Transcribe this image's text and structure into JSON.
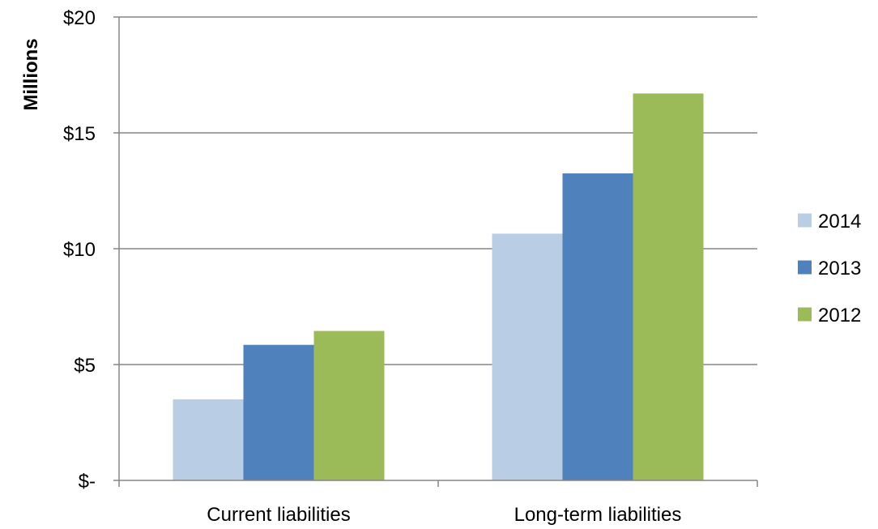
{
  "chart_data": {
    "type": "bar",
    "title": "",
    "xlabel": "",
    "ylabel": "Millions",
    "categories": [
      "Current liabilities",
      "Long-term liabilities"
    ],
    "series": [
      {
        "name": "2014",
        "color": "#b9cde5",
        "values": [
          3.5,
          10.65
        ]
      },
      {
        "name": "2013",
        "color": "#4f81bd",
        "values": [
          5.85,
          13.25
        ]
      },
      {
        "name": "2012",
        "color": "#9bbb59",
        "values": [
          6.45,
          16.7
        ]
      }
    ],
    "ylim": [
      0,
      20
    ],
    "yticks": [
      0,
      5,
      10,
      15,
      20
    ],
    "ytick_labels": [
      "$-",
      "$5",
      "$10",
      "$15",
      "$20"
    ],
    "grid": true,
    "legend_position": "right"
  }
}
